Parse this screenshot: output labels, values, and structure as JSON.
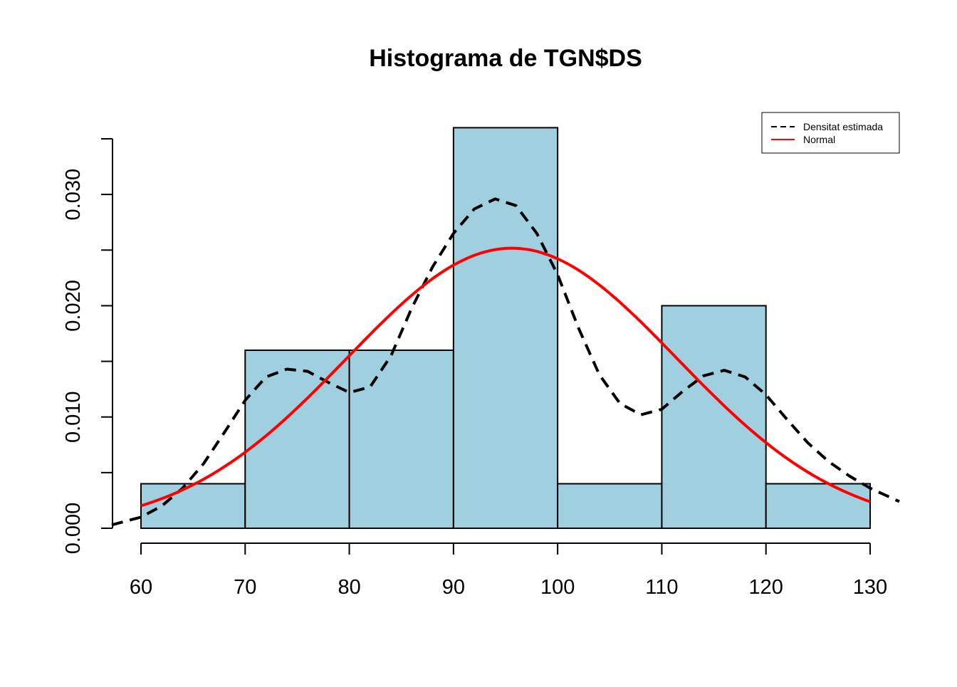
{
  "chart_data": {
    "type": "bar",
    "title": "Histograma de TGN$DS",
    "xlabel": "",
    "ylabel": "",
    "xlim": [
      57.2,
      132.8
    ],
    "ylim": [
      0,
      0.035
    ],
    "x_ticks": [
      60,
      70,
      80,
      90,
      100,
      110,
      120,
      130
    ],
    "x_tick_labels": [
      "60",
      "70",
      "80",
      "90",
      "100",
      "110",
      "120",
      "130"
    ],
    "y_ticks": [
      0,
      0.005,
      0.01,
      0.015,
      0.02,
      0.025,
      0.03,
      0.035
    ],
    "y_tick_labels": [
      "0.000",
      "",
      "0.010",
      "",
      "0.020",
      "",
      "0.030",
      ""
    ],
    "bins": [
      {
        "start": 60,
        "end": 70,
        "density": 0.004
      },
      {
        "start": 70,
        "end": 80,
        "density": 0.016
      },
      {
        "start": 80,
        "end": 90,
        "density": 0.016
      },
      {
        "start": 90,
        "end": 100,
        "density": 0.036
      },
      {
        "start": 100,
        "end": 110,
        "density": 0.004
      },
      {
        "start": 110,
        "end": 120,
        "density": 0.02
      },
      {
        "start": 120,
        "end": 130,
        "density": 0.004
      }
    ],
    "bar_fill": "#a0cfe0",
    "series": [
      {
        "name": "Densitat estimada",
        "type": "line",
        "style": "dashed",
        "color": "#000000",
        "x": [
          57.2,
          60,
          62,
          64,
          66,
          68,
          70,
          72,
          74,
          76,
          78,
          80,
          82,
          84,
          86,
          88,
          90,
          92,
          94,
          96,
          98,
          100,
          102,
          104,
          106,
          108,
          110,
          112,
          114,
          116,
          118,
          120,
          122,
          124,
          126,
          128,
          130,
          132.8
        ],
        "y": [
          0.0003,
          0.001,
          0.002,
          0.0036,
          0.0058,
          0.0086,
          0.0115,
          0.0136,
          0.0143,
          0.0141,
          0.0131,
          0.0122,
          0.0127,
          0.0155,
          0.0198,
          0.0235,
          0.0265,
          0.0287,
          0.0296,
          0.029,
          0.0265,
          0.0228,
          0.018,
          0.0138,
          0.0112,
          0.0102,
          0.0107,
          0.0123,
          0.0137,
          0.0142,
          0.0136,
          0.012,
          0.0098,
          0.0077,
          0.006,
          0.0047,
          0.0036,
          0.0024
        ]
      },
      {
        "name": "Normal",
        "type": "line",
        "style": "solid",
        "color": "#ff0000",
        "mean": 95.6,
        "sd": 15.85,
        "x_range": [
          60,
          130
        ]
      }
    ],
    "legend": {
      "position": "top-right",
      "entries": [
        {
          "label": "Densitat estimada",
          "style": "dashed",
          "color": "#000000"
        },
        {
          "label": "Normal",
          "style": "solid",
          "color": "#ff0000"
        }
      ]
    },
    "grid": false
  }
}
